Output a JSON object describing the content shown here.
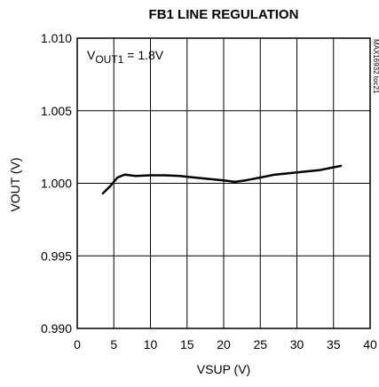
{
  "chart_data": {
    "type": "line",
    "title": "FB1 LINE REGULATION",
    "xlabel": "VSUP (V)",
    "ylabel": "VOUT (V)",
    "xlim": [
      0,
      40
    ],
    "ylim": [
      0.99,
      1.01
    ],
    "x_ticks": [
      "0",
      "5",
      "10",
      "15",
      "20",
      "25",
      "30",
      "35",
      "40"
    ],
    "y_ticks": [
      "0.990",
      "0.995",
      "1.000",
      "1.005",
      "1.010"
    ],
    "grid": true,
    "annotation": {
      "main": "V",
      "sub": "OUT1",
      "rest": " = 1.8V"
    },
    "side_id": "MAX16932 toc21",
    "series": [
      {
        "color": "#000000",
        "x": [
          3.5,
          4.5,
          5.5,
          6.5,
          8,
          10,
          12,
          14,
          16,
          18,
          20,
          21.5,
          23,
          25,
          27,
          29,
          31,
          33,
          35,
          36
        ],
        "y": [
          0.9993,
          0.9998,
          1.0004,
          1.0006,
          1.0005,
          1.00055,
          1.00055,
          1.0005,
          1.0004,
          1.0003,
          1.0002,
          1.0001,
          1.0002,
          1.0004,
          1.0006,
          1.0007,
          1.0008,
          1.0009,
          1.0011,
          1.0012
        ]
      }
    ]
  }
}
